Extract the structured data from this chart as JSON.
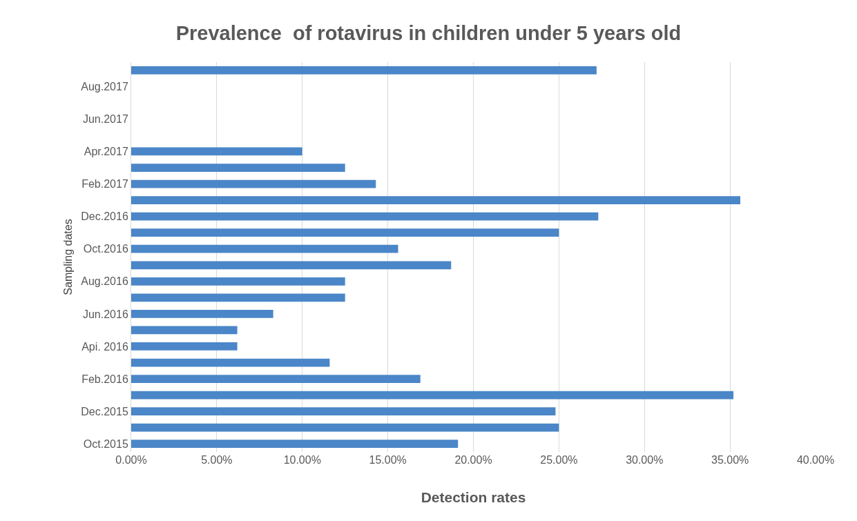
{
  "chart_data": {
    "type": "bar",
    "orientation": "horizontal",
    "title": "Prevalence  of rotavirus in children under 5 years old",
    "xlabel": "Detection rates",
    "ylabel": "Sampling dates",
    "categories": [
      null,
      "Aug.2017",
      null,
      "Jun.2017",
      null,
      "Apr.2017",
      null,
      "Feb.2017",
      null,
      "Dec.2016",
      null,
      "Oct.2016",
      null,
      "Aug.2016",
      null,
      "Jun.2016",
      null,
      "Api. 2016",
      null,
      "Feb.2016",
      null,
      "Dec.2015",
      null,
      "Oct.2015"
    ],
    "values": [
      27.2,
      0,
      0,
      0,
      0,
      10.0,
      12.5,
      14.3,
      35.6,
      27.3,
      25.0,
      15.6,
      18.7,
      12.5,
      12.5,
      8.3,
      6.2,
      6.2,
      11.6,
      16.9,
      35.2,
      24.8,
      25.0,
      19.1
    ],
    "color": "#4a86c8",
    "xlim": [
      0,
      40
    ],
    "xticks": [
      {
        "value": 0,
        "label": "0.00%"
      },
      {
        "value": 5,
        "label": "5.00%"
      },
      {
        "value": 10,
        "label": "10.00%"
      },
      {
        "value": 15,
        "label": "15.00%"
      },
      {
        "value": 20,
        "label": "20.00%"
      },
      {
        "value": 25,
        "label": "25.00%"
      },
      {
        "value": 30,
        "label": "30.00%"
      },
      {
        "value": 35,
        "label": "35.00%"
      },
      {
        "value": 40,
        "label": "40.00%"
      }
    ],
    "grid": "x"
  }
}
